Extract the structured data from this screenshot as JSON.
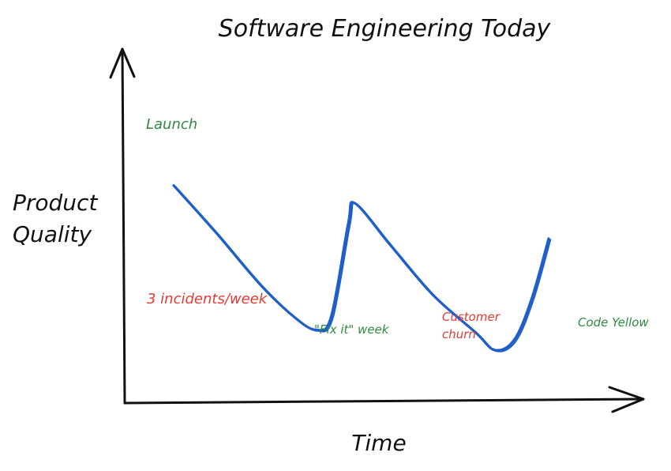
{
  "chart_data": {
    "type": "line",
    "title": "Software Engineering Today",
    "xlabel": "Time",
    "ylabel": [
      "Product",
      "Quality"
    ],
    "grid": false,
    "legend": "none",
    "series": [
      {
        "color": "#1f5fc9",
        "points": [
          [
            0.0,
            0.85
          ],
          [
            0.1,
            0.66
          ],
          [
            0.2,
            0.46
          ],
          [
            0.28,
            0.33
          ],
          [
            0.33,
            0.28
          ],
          [
            0.365,
            0.33
          ],
          [
            0.405,
            0.7
          ],
          [
            0.42,
            0.78
          ],
          [
            0.5,
            0.62
          ],
          [
            0.6,
            0.42
          ],
          [
            0.7,
            0.27
          ],
          [
            0.745,
            0.2
          ],
          [
            0.79,
            0.24
          ],
          [
            0.83,
            0.4
          ],
          [
            0.87,
            0.64
          ]
        ]
      }
    ],
    "annotations": [
      {
        "text": "Launch",
        "color": "#2e8b3e",
        "kind": "milestone"
      },
      {
        "text": "3 incidents/week",
        "color": "#e53935",
        "kind": "problem"
      },
      {
        "text": "\"Fix it\" week",
        "color": "#2e8b3e",
        "kind": "milestone"
      },
      {
        "text": "Customer",
        "color": "#e53935",
        "kind": "problem"
      },
      {
        "text": "churn",
        "color": "#e53935",
        "kind": "problem"
      },
      {
        "text": "Code Yellow",
        "color": "#2e8b3e",
        "kind": "milestone"
      }
    ]
  }
}
